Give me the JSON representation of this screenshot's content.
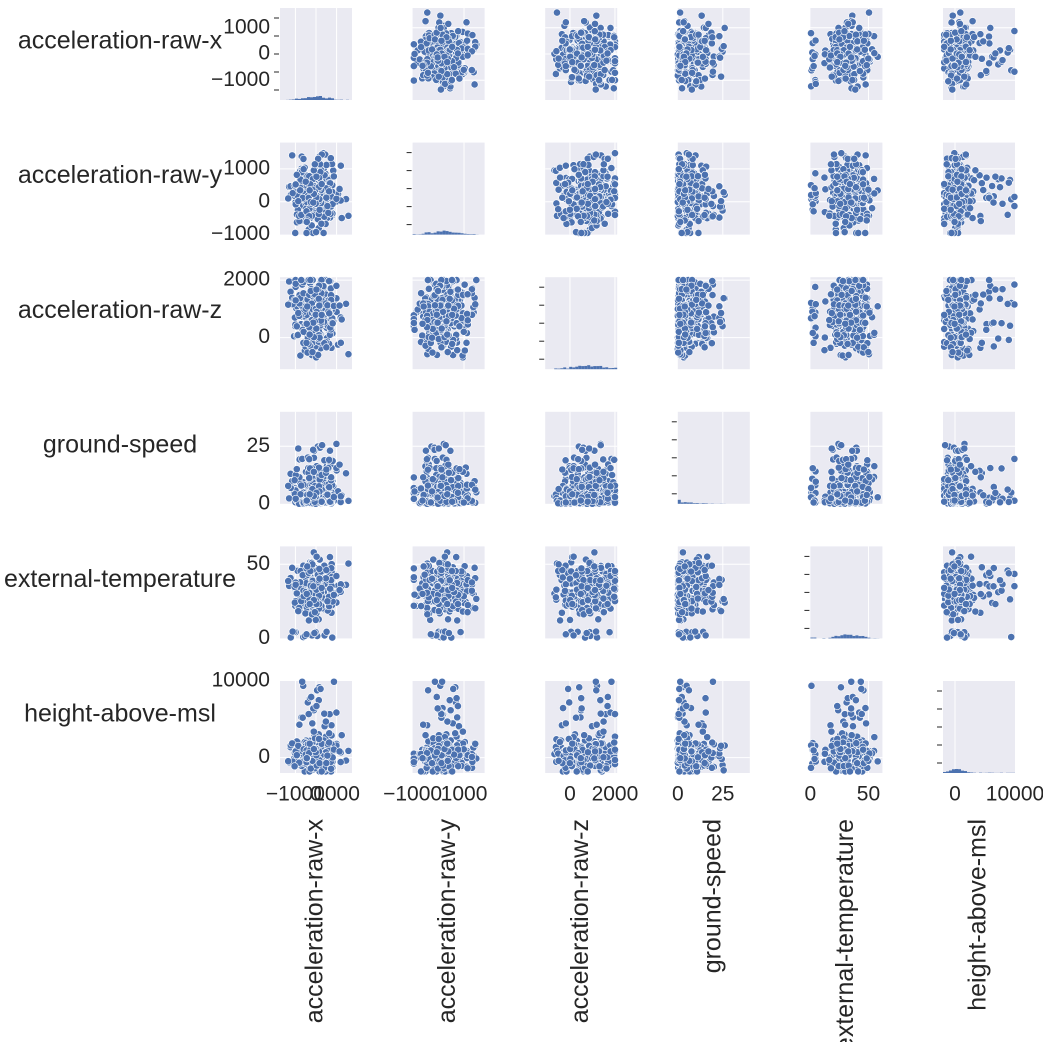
{
  "chart_data": {
    "type": "scatter",
    "title": "",
    "variables": [
      "acceleration-raw-x",
      "acceleration-raw-y",
      "acceleration-raw-z",
      "ground-speed",
      "external-temperature",
      "height-above-msl"
    ],
    "row_labels": [
      "acceleration-raw-x",
      "acceleration-raw-y",
      "acceleration-raw-z",
      "ground-speed",
      "external-temperature",
      "height-above-msl"
    ],
    "column_labels": [
      "acceleration-raw-x",
      "acceleration-raw-y",
      "acceleration-raw-z",
      "ground-speed",
      "external-temperature",
      "height-above-msl"
    ],
    "ranges": {
      "acceleration-raw-x": [
        -1750,
        1750
      ],
      "acceleration-raw-y": [
        -1000,
        1800
      ],
      "acceleration-raw-z": [
        -1100,
        2100
      ],
      "ground-speed": [
        0,
        40
      ],
      "external-temperature": [
        0,
        62
      ],
      "height-above-msl": [
        -2000,
        10000
      ]
    },
    "y_ticks": {
      "acceleration-raw-x": [
        {
          "value": 1000,
          "label": "1000"
        },
        {
          "value": 0,
          "label": "0"
        },
        {
          "value": -1000,
          "label": "−1000"
        }
      ],
      "acceleration-raw-y": [
        {
          "value": 1000,
          "label": "1000"
        },
        {
          "value": 0,
          "label": "0"
        },
        {
          "value": -1000,
          "label": "−1000"
        }
      ],
      "acceleration-raw-z": [
        {
          "value": 2000,
          "label": "2000"
        },
        {
          "value": 0,
          "label": "0"
        }
      ],
      "ground-speed": [
        {
          "value": 25,
          "label": "25"
        },
        {
          "value": 0,
          "label": "0"
        }
      ],
      "external-temperature": [
        {
          "value": 50,
          "label": "50"
        },
        {
          "value": 0,
          "label": "0"
        }
      ],
      "height-above-msl": [
        {
          "value": 10000,
          "label": "10000"
        },
        {
          "value": 0,
          "label": "0"
        }
      ]
    },
    "x_ticks": {
      "acceleration-raw-x": [
        {
          "value": -1000,
          "label": "−1000"
        },
        {
          "value": 0,
          "label": "0"
        },
        {
          "value": 1000,
          "label": "1000"
        }
      ],
      "acceleration-raw-y": [
        {
          "value": -1000,
          "label": "−1000"
        },
        {
          "value": 1000,
          "label": "1000"
        }
      ],
      "acceleration-raw-z": [
        {
          "value": 0,
          "label": "0"
        },
        {
          "value": 2000,
          "label": "2000"
        }
      ],
      "ground-speed": [
        {
          "value": 0,
          "label": "0"
        },
        {
          "value": 25,
          "label": "25"
        }
      ],
      "external-temperature": [
        {
          "value": 0,
          "label": "0"
        },
        {
          "value": 50,
          "label": "50"
        }
      ],
      "height-above-msl": [
        {
          "value": 0,
          "label": "0"
        },
        {
          "value": 10000,
          "label": "10000"
        }
      ]
    },
    "marker_color": "#4c72b0",
    "marker_edge": "#ffffff",
    "axes_background": "#eaeaf2",
    "grid_color": "#ffffff",
    "text_color": "#262626"
  }
}
